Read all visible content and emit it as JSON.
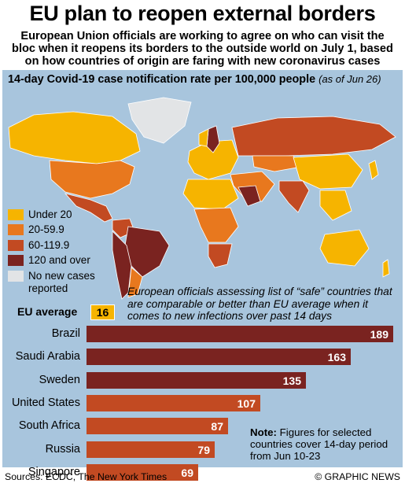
{
  "header": {
    "title": "EU plan to reopen external borders",
    "subtitle": "European Union officials are working to agree on who can visit the bloc when it reopens its borders to the outside world on July 1, based on how countries of origin are faring with new coronavirus cases"
  },
  "map": {
    "heading": "14-day Covid-19 case notification rate per 100,000 people",
    "date": "(as of Jun 26)",
    "legend": [
      {
        "label": "Under 20",
        "color": "#f6b400"
      },
      {
        "label": "20-59.9",
        "color": "#e8781e"
      },
      {
        "label": "60-119.9",
        "color": "#c24a22"
      },
      {
        "label": "120 and over",
        "color": "#7a2320"
      },
      {
        "label": "No new cases",
        "color": "#e2e4e6"
      },
      {
        "label": "reported",
        "color": ""
      }
    ]
  },
  "note": "European officials assessing list of “safe” countries that are comparable or better than EU average when it comes to new infections over past 14 days",
  "eu_average": {
    "label": "EU average",
    "value": "16"
  },
  "chart_data": {
    "type": "bar",
    "orientation": "horizontal",
    "categories": [
      "Brazil",
      "Saudi Arabia",
      "Sweden",
      "United States",
      "South Africa",
      "Russia",
      "Singapore"
    ],
    "values": [
      189,
      163,
      135,
      107,
      87,
      79,
      69
    ],
    "colors": [
      "#7a2320",
      "#7a2320",
      "#7a2320",
      "#c24a22",
      "#c24a22",
      "#c24a22",
      "#c24a22"
    ],
    "reference": {
      "label": "EU average",
      "value": 16
    }
  },
  "footnote": {
    "bold": "Note:",
    "text": " Figures for selected countries cover 14-day period from Jun 10-23"
  },
  "footer": {
    "sources": "Sources: ECDC, The New York Times",
    "credit": "© GRAPHIC NEWS"
  }
}
